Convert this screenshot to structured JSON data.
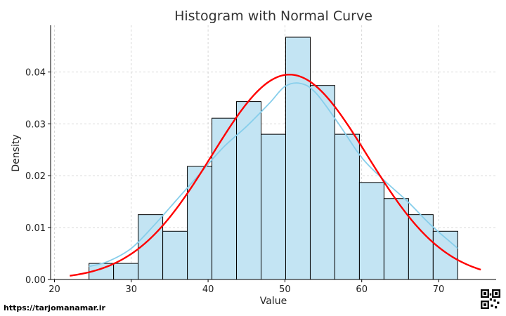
{
  "chart_data": {
    "type": "bar",
    "title": "Histogram with Normal Curve",
    "xlabel": "Value",
    "ylabel": "Density",
    "xlim": [
      19.5,
      77.5
    ],
    "ylim": [
      0,
      0.049
    ],
    "xticks": [
      20,
      30,
      40,
      50,
      60,
      70
    ],
    "yticks": [
      0.0,
      0.01,
      0.02,
      0.03,
      0.04
    ],
    "ytick_labels": [
      "0.00",
      "0.01",
      "0.02",
      "0.03",
      "0.04"
    ],
    "grid": true,
    "bin_edges": [
      24.5,
      27.7,
      30.9,
      34.1,
      37.3,
      40.5,
      43.7,
      46.9,
      50.1,
      53.3,
      56.5,
      59.7,
      62.9,
      66.1,
      69.3,
      72.5
    ],
    "densities": [
      0.0031,
      0.0031,
      0.0125,
      0.0093,
      0.0218,
      0.0311,
      0.0343,
      0.028,
      0.0467,
      0.0374,
      0.028,
      0.0187,
      0.0156,
      0.0125,
      0.0093
    ],
    "kde_curve": {
      "x": [
        24.5,
        27,
        30,
        33,
        36,
        39,
        42,
        45,
        48,
        50,
        52,
        54,
        57,
        60,
        63,
        66,
        69,
        72.5
      ],
      "y": [
        0.0025,
        0.0035,
        0.006,
        0.0105,
        0.0155,
        0.0205,
        0.0255,
        0.0295,
        0.034,
        0.0372,
        0.0378,
        0.036,
        0.03,
        0.0235,
        0.019,
        0.015,
        0.0105,
        0.006
      ]
    },
    "normal_curve": {
      "mean": 50.6,
      "std": 10.1,
      "x_range": [
        22,
        75.5
      ]
    },
    "colors": {
      "bar_fill": "#c3e4f3",
      "bar_edge": "#000000",
      "kde": "#87ceeb",
      "normal": "#ff0000",
      "grid": "#cccccc"
    }
  },
  "watermark": {
    "text": "https://tarjomanamar.ir",
    "icon": "qr-code-icon"
  }
}
